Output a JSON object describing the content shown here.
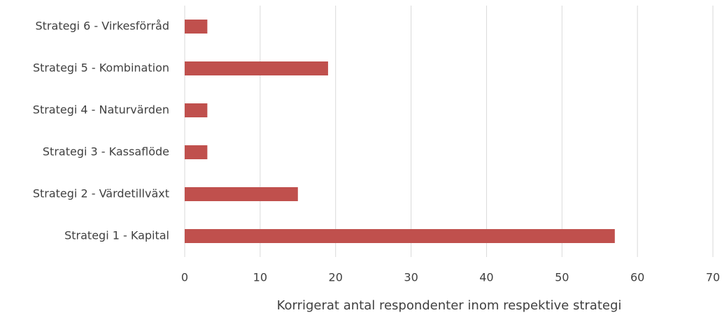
{
  "chart_data": {
    "type": "barh",
    "categories": [
      "Strategi 6 - Virkesförråd",
      "Strategi 5 - Kombination",
      "Strategi 4 - Naturvärden",
      "Strategi 3 - Kassaflöde",
      "Strategi 2 - Värdetillväxt",
      "Strategi 1 - Kapital"
    ],
    "values": [
      3,
      19,
      3,
      3,
      15,
      57
    ],
    "color": "#c0504d",
    "xlabel": "Korrigerat antal respondenter inom respektive strategi",
    "xlim": [
      0,
      70
    ],
    "xticks": [
      0,
      10,
      20,
      30,
      40,
      50,
      60,
      70
    ],
    "grid": true
  }
}
